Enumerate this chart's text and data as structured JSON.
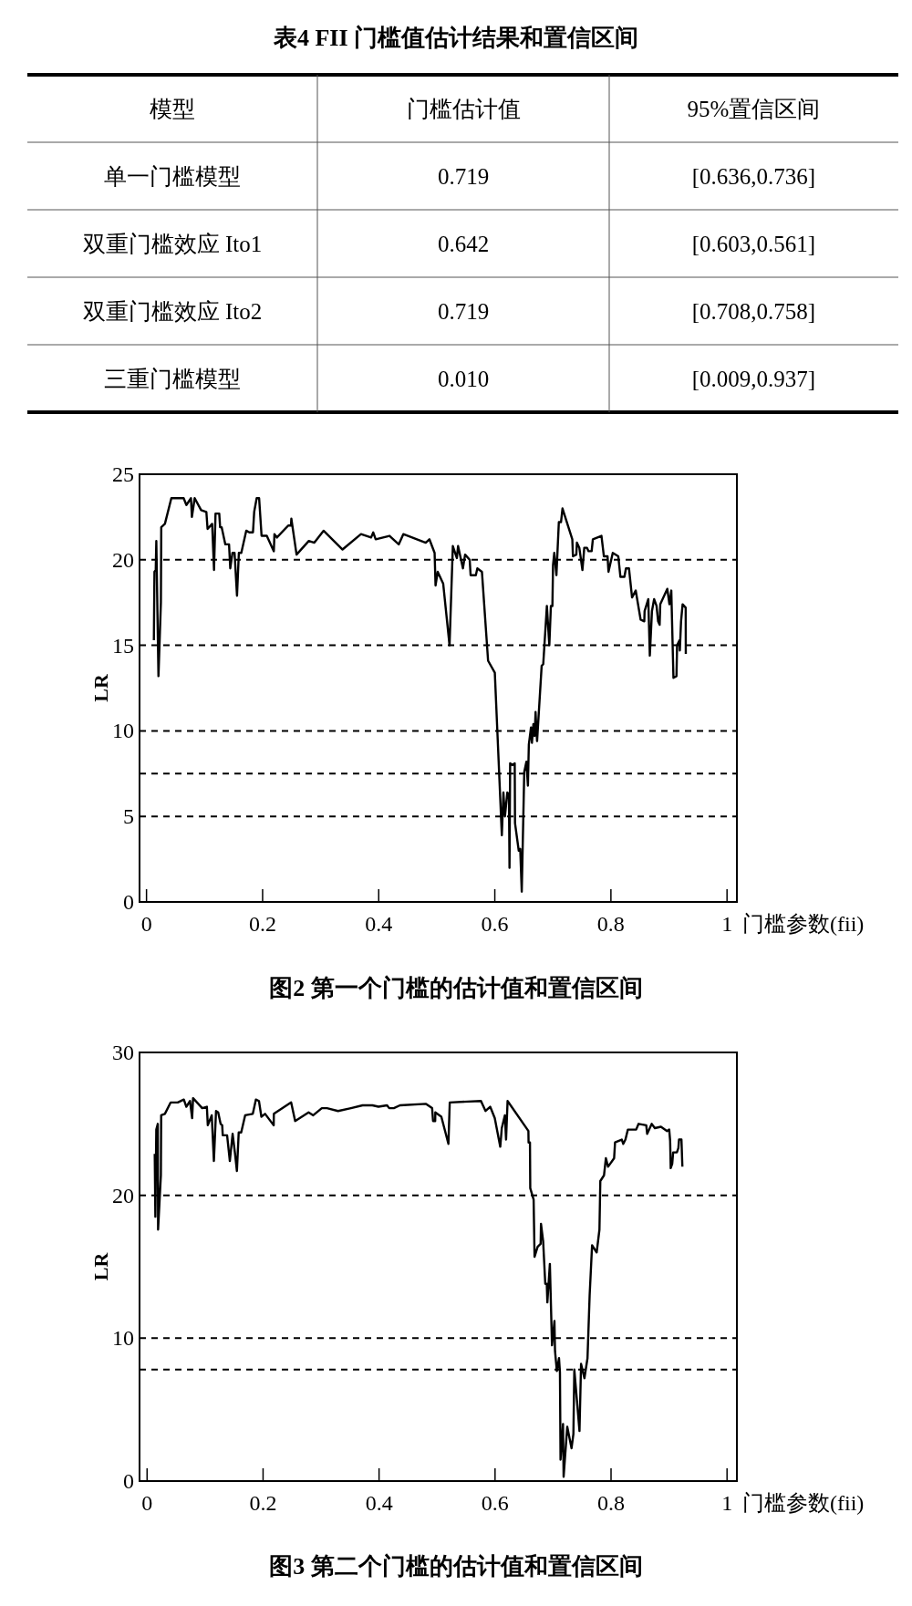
{
  "chart_data": [
    {
      "type": "other",
      "title": "表4  FII 门槛值估计结果和置信区间",
      "annotations": [
        "模型",
        "门槛估计值",
        "95%置信区间",
        "单一门槛模型",
        "0.719",
        "[0.636,0.736]",
        "双重门槛效应 Ito1",
        "0.642",
        "[0.603,0.561]",
        "双重门槛效应 Ito2",
        "0.719",
        "[0.708,0.758]",
        "三重门槛模型",
        "0.010",
        "[0.009,0.937]"
      ]
    },
    {
      "type": "line",
      "title": "图2  第一个门槛的估计值和置信区间",
      "xlabel": "门槛参数(fii)",
      "ylabel": "LR",
      "xlim": [
        -0.012,
        1.017
      ],
      "ylim": [
        0,
        25
      ],
      "xticks": [
        0,
        0.2,
        0.4,
        0.6,
        0.8,
        1
      ],
      "yticks": [
        0,
        5,
        10,
        15,
        20,
        25
      ],
      "grid": false,
      "marker": "none",
      "line_style": "solid",
      "ref_lines": [
        {
          "axis": "y",
          "value": 20,
          "line_style": "dashed"
        },
        {
          "axis": "y",
          "value": 15,
          "line_style": "dashed"
        },
        {
          "axis": "y",
          "value": 10,
          "line_style": "dashed"
        },
        {
          "axis": "y",
          "value": 7.5,
          "line_style": "dashed"
        },
        {
          "axis": "y",
          "value": 5,
          "line_style": "dashed"
        }
      ],
      "series": [
        {
          "color": "#000000",
          "x": [
            0.0127,
            0.0137,
            0.0159,
            0.0169,
            0.0206,
            0.0248,
            0.0254,
            0.0317,
            0.0428,
            0.064,
            0.0687,
            0.0766,
            0.0782,
            0.083,
            0.0941,
            0.1031,
            0.1052,
            0.1131,
            0.1163,
            0.1189,
            0.1253,
            0.1268,
            0.1295,
            0.1358,
            0.1422,
            0.1443,
            0.148,
            0.1517,
            0.1559,
            0.1591,
            0.1633,
            0.1718,
            0.1771,
            0.1834,
            0.1855,
            0.1898,
            0.194,
            0.1982,
            0.2072,
            0.2193,
            0.2204,
            0.2246,
            0.2442,
            0.2489,
            0.2495,
            0.2585,
            0.2796,
            0.2891,
            0.305,
            0.3377,
            0.3695,
            0.3869,
            0.3906,
            0.3948,
            0.4186,
            0.4345,
            0.4424,
            0.481,
            0.4873,
            0.4963,
            0.4979,
            0.5016,
            0.5111,
            0.522,
            0.5277,
            0.5346,
            0.5367,
            0.5451,
            0.5488,
            0.5567,
            0.5583,
            0.5673,
            0.5699,
            0.5778,
            0.5884,
            0.6,
            0.6042,
            0.6121,
            0.6148,
            0.6174,
            0.6216,
            0.6243,
            0.6253,
            0.6264,
            0.6306,
            0.6343,
            0.6348,
            0.6412,
            0.6438,
            0.6464,
            0.6507,
            0.6544,
            0.657,
            0.6586,
            0.6623,
            0.6639,
            0.6665,
            0.6686,
            0.6702,
            0.6728,
            0.6807,
            0.6834,
            0.6897,
            0.6939,
            0.6966,
            0.6992,
            0.7003,
            0.7024,
            0.7061,
            0.7103,
            0.714,
            0.7166,
            0.7335,
            0.7346,
            0.7404,
            0.7414,
            0.7456,
            0.7509,
            0.7541,
            0.7588,
            0.7615,
            0.7668,
            0.7689,
            0.7837,
            0.7879,
            0.7942,
            0.7958,
            0.8032,
            0.8127,
            0.8164,
            0.8232,
            0.8259,
            0.8311,
            0.8364,
            0.8427,
            0.8512,
            0.8575,
            0.858,
            0.8644,
            0.867,
            0.8707,
            0.8744,
            0.8786,
            0.8813,
            0.8839,
            0.885,
            0.8971,
            0.9008,
            0.904,
            0.9077,
            0.9129,
            0.914,
            0.9182,
            0.9187,
            0.9208,
            0.9235,
            0.9288,
            0.929
          ],
          "values": [
            15.3,
            19.3,
            19.4,
            21.1,
            13.2,
            17.5,
            21.9,
            22.1,
            23.6,
            23.6,
            23.2,
            23.6,
            22.5,
            23.6,
            22.9,
            22.8,
            21.8,
            22.1,
            19.4,
            22.7,
            22.7,
            21.9,
            21.9,
            20.9,
            20.9,
            19.5,
            20.4,
            20.4,
            17.9,
            20.4,
            20.4,
            21.7,
            21.6,
            21.6,
            22.8,
            23.6,
            23.6,
            21.4,
            21.4,
            20.5,
            21.5,
            21.3,
            22.0,
            22.0,
            22.4,
            20.3,
            21.1,
            21.0,
            21.7,
            20.6,
            21.5,
            21.3,
            21.6,
            21.2,
            21.4,
            20.9,
            21.5,
            21.0,
            21.2,
            20.4,
            18.5,
            19.3,
            18.6,
            15.0,
            20.8,
            20.1,
            20.8,
            19.5,
            20.3,
            20.0,
            19.1,
            19.1,
            19.5,
            19.3,
            14.1,
            13.4,
            10.1,
            3.9,
            6.4,
            5.0,
            6.4,
            6.3,
            2.0,
            8.1,
            8.0,
            8.1,
            4.6,
            3.0,
            3.1,
            0.6,
            7.6,
            8.2,
            6.8,
            9.2,
            10.2,
            9.3,
            10.4,
            9.7,
            11.1,
            9.4,
            13.8,
            13.9,
            17.3,
            15.0,
            17.3,
            17.3,
            19.7,
            20.4,
            19.1,
            22.2,
            22.2,
            23.0,
            21.2,
            20.2,
            20.3,
            21.0,
            20.7,
            19.4,
            20.7,
            20.7,
            20.5,
            20.5,
            21.2,
            21.4,
            20.2,
            20.2,
            19.3,
            20.4,
            20.2,
            19.0,
            19.0,
            19.5,
            19.5,
            17.8,
            18.2,
            16.5,
            16.4,
            17.0,
            17.7,
            14.4,
            17.0,
            17.7,
            17.3,
            16.4,
            16.2,
            17.4,
            18.3,
            17.4,
            18.2,
            13.1,
            13.2,
            15.0,
            15.3,
            14.7,
            16.4,
            17.4,
            17.2,
            14.5
          ]
        }
      ]
    },
    {
      "type": "line",
      "title": "图3  第二个门槛的估计值和置信区间",
      "xlabel": "门槛参数(fii)",
      "ylabel": "LR",
      "xlim": [
        -0.013,
        1.017
      ],
      "ylim": [
        0,
        30
      ],
      "xticks": [
        0,
        0.2,
        0.4,
        0.6,
        0.8,
        1
      ],
      "yticks": [
        0,
        10,
        20,
        30
      ],
      "grid": false,
      "marker": "none",
      "line_style": "solid",
      "ref_lines": [
        {
          "axis": "y",
          "value": 20,
          "line_style": "dashed"
        },
        {
          "axis": "y",
          "value": 10,
          "line_style": "dashed"
        },
        {
          "axis": "y",
          "value": 7.8,
          "line_style": "dashed"
        }
      ],
      "series": [
        {
          "color": "#000000",
          "x": [
            0.0132,
            0.0143,
            0.0159,
            0.0185,
            0.019,
            0.0238,
            0.0243,
            0.0307,
            0.0407,
            0.0529,
            0.0634,
            0.0677,
            0.074,
            0.0777,
            0.0793,
            0.0951,
            0.1031,
            0.1047,
            0.1115,
            0.1152,
            0.1189,
            0.1226,
            0.1268,
            0.1295,
            0.1305,
            0.138,
            0.1427,
            0.1475,
            0.1517,
            0.1549,
            0.158,
            0.1623,
            0.1691,
            0.1823,
            0.186,
            0.1876,
            0.1929,
            0.1971,
            0.2035,
            0.2183,
            0.2186,
            0.2484,
            0.2553,
            0.2785,
            0.2865,
            0.3013,
            0.3103,
            0.3293,
            0.3515,
            0.3716,
            0.3885,
            0.399,
            0.4138,
            0.4175,
            0.4255,
            0.436,
            0.481,
            0.4915,
            0.4931,
            0.4968,
            0.497,
            0.5074,
            0.5196,
            0.5219,
            0.5757,
            0.5836,
            0.5916,
            0.5995,
            0.609,
            0.6116,
            0.6169,
            0.619,
            0.6216,
            0.6575,
            0.6578,
            0.6602,
            0.6607,
            0.6665,
            0.6681,
            0.6734,
            0.6786,
            0.6792,
            0.6829,
            0.6866,
            0.6892,
            0.6902,
            0.6945,
            0.6982,
            0.7024,
            0.7034,
            0.7066,
            0.7103,
            0.7119,
            0.7129,
            0.7172,
            0.7182,
            0.7245,
            0.7319,
            0.7351,
            0.7367,
            0.7456,
            0.7483,
            0.7541,
            0.7594,
            0.7631,
            0.7673,
            0.7752,
            0.78,
            0.7815,
            0.7879,
            0.7911,
            0.7948,
            0.8053,
            0.8069,
            0.8185,
            0.8211,
            0.8248,
            0.829,
            0.8433,
            0.8475,
            0.8607,
            0.8623,
            0.8702,
            0.8755,
            0.886,
            0.8966,
            0.9003,
            0.9019,
            0.9029,
            0.9055,
            0.9071,
            0.9135,
            0.9161,
            0.9172,
            0.9214,
            0.923
          ],
          "values": [
            22.9,
            18.5,
            24.6,
            25.0,
            17.6,
            21.4,
            25.6,
            25.7,
            26.5,
            26.5,
            26.7,
            26.2,
            26.6,
            25.4,
            26.8,
            26.1,
            26.2,
            24.9,
            25.6,
            22.4,
            25.9,
            25.8,
            25.0,
            24.9,
            24.2,
            24.2,
            22.4,
            24.3,
            22.9,
            21.7,
            24.4,
            24.4,
            25.6,
            25.7,
            26.4,
            26.7,
            26.6,
            25.5,
            25.7,
            24.9,
            25.7,
            26.5,
            25.2,
            25.8,
            25.6,
            26.1,
            26.1,
            25.9,
            26.1,
            26.3,
            26.3,
            26.2,
            26.3,
            26.1,
            26.1,
            26.3,
            26.4,
            26.1,
            25.2,
            25.2,
            25.8,
            25.5,
            23.6,
            26.5,
            26.6,
            25.9,
            26.2,
            25.4,
            23.4,
            24.7,
            25.6,
            23.9,
            26.6,
            24.5,
            23.7,
            23.7,
            20.5,
            19.7,
            15.7,
            16.4,
            16.6,
            18.0,
            16.8,
            13.8,
            13.8,
            12.5,
            15.2,
            9.5,
            11.2,
            9.1,
            7.7,
            8.6,
            7.6,
            1.5,
            4.0,
            0.3,
            3.8,
            2.3,
            3.3,
            7.8,
            3.5,
            8.2,
            7.2,
            8.6,
            13.0,
            16.5,
            16.0,
            17.6,
            21.0,
            21.4,
            22.6,
            22.0,
            22.6,
            23.7,
            23.9,
            23.6,
            23.9,
            24.6,
            24.6,
            25.0,
            24.9,
            24.3,
            25.0,
            24.7,
            24.8,
            24.5,
            24.6,
            23.8,
            21.9,
            22.2,
            23.0,
            23.0,
            23.3,
            23.9,
            23.9,
            22.0
          ]
        }
      ]
    }
  ]
}
